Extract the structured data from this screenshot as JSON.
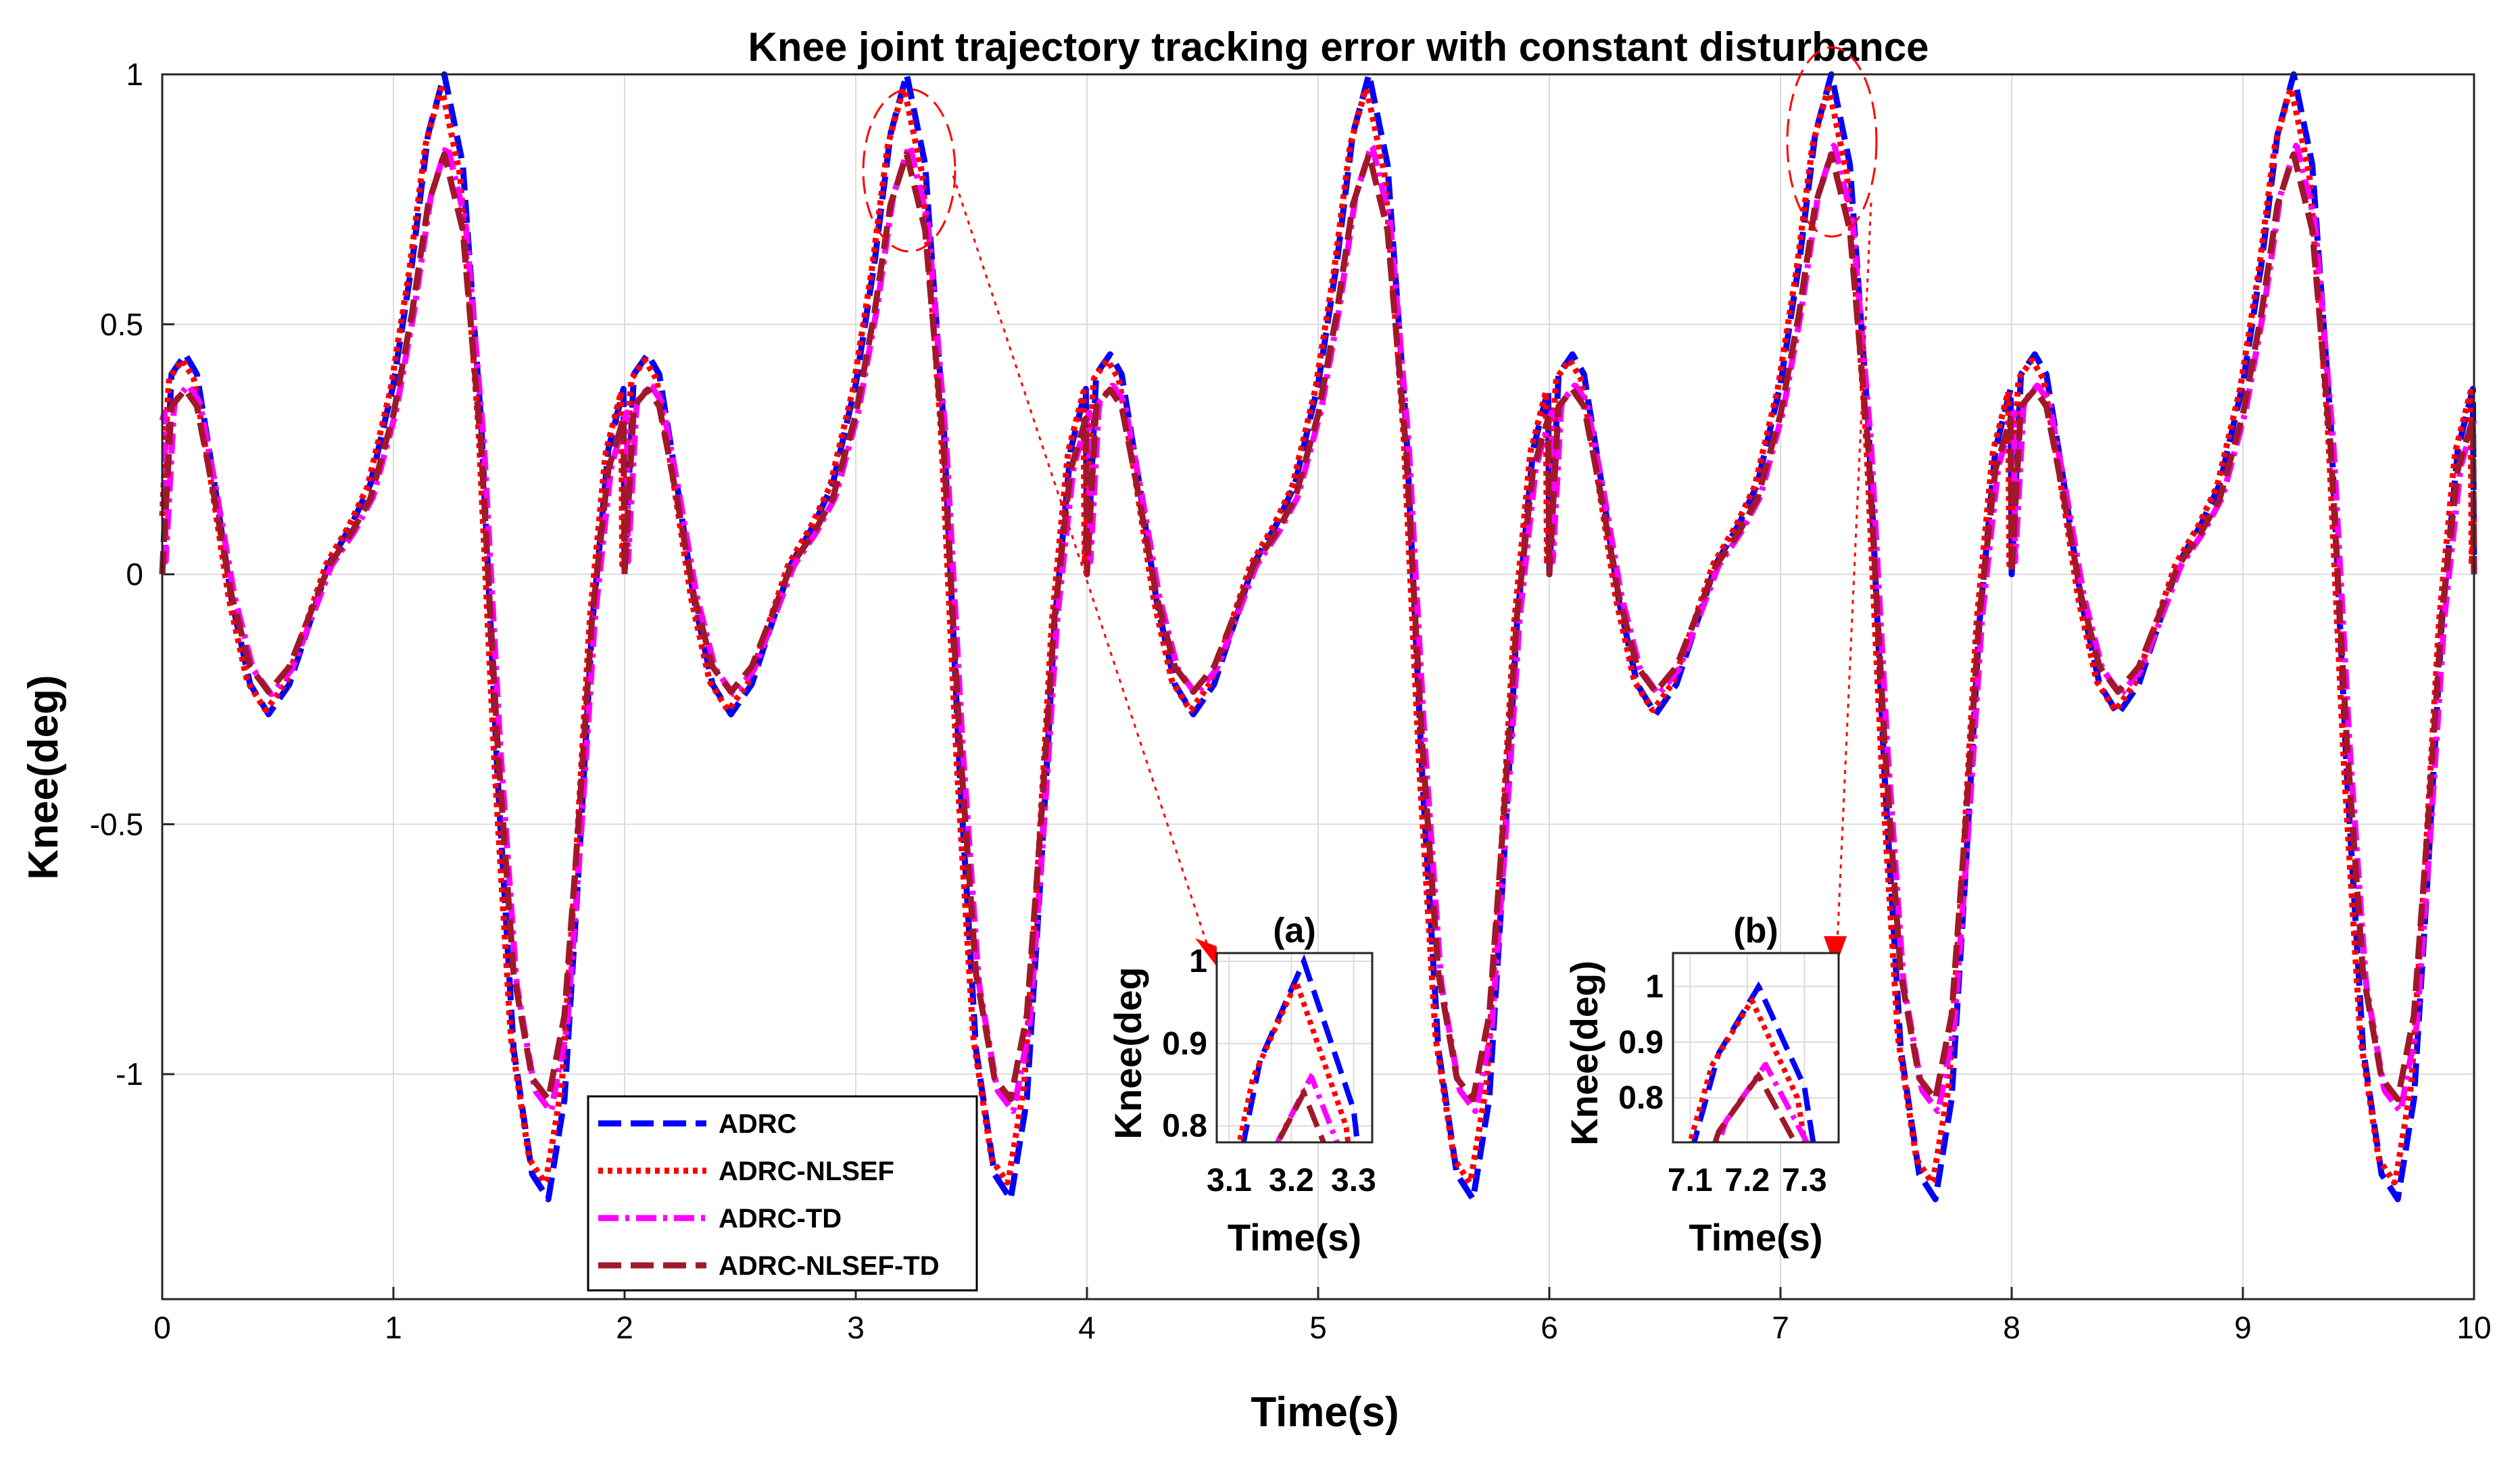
{
  "chart_data": {
    "type": "line",
    "title": "Knee joint trajectory tracking error with constant disturbance",
    "xlabel": "Time(s)",
    "ylabel": "Knee(deg)",
    "xlim": [
      0,
      10
    ],
    "ylim": [
      -1.45,
      1.0
    ],
    "xticks": [
      0,
      1,
      2,
      3,
      4,
      5,
      6,
      7,
      8,
      9,
      10
    ],
    "xtick_labels": [
      "0",
      "1",
      "2",
      "3",
      "4",
      "5",
      "6",
      "7",
      "8",
      "9",
      "10"
    ],
    "yticks": [
      1,
      0.5,
      0,
      -0.5,
      -1
    ],
    "ytick_labels": [
      "1",
      "0.5",
      "0",
      "-0.5",
      "-1"
    ],
    "grid": true,
    "legend_position": "bottom-left",
    "period": 2,
    "waveform_points": [
      [
        0.0,
        0.0
      ],
      [
        0.04,
        0.4
      ],
      [
        0.1,
        0.44
      ],
      [
        0.15,
        0.4
      ],
      [
        0.22,
        0.2
      ],
      [
        0.3,
        -0.05
      ],
      [
        0.38,
        -0.22
      ],
      [
        0.46,
        -0.28
      ],
      [
        0.55,
        -0.22
      ],
      [
        0.65,
        -0.08
      ],
      [
        0.72,
        0.02
      ],
      [
        0.82,
        0.1
      ],
      [
        0.9,
        0.18
      ],
      [
        1.0,
        0.38
      ],
      [
        1.08,
        0.62
      ],
      [
        1.15,
        0.88
      ],
      [
        1.22,
        1.0
      ],
      [
        1.3,
        0.82
      ],
      [
        1.38,
        0.3
      ],
      [
        1.45,
        -0.4
      ],
      [
        1.52,
        -0.95
      ],
      [
        1.6,
        -1.2
      ],
      [
        1.67,
        -1.25
      ],
      [
        1.74,
        -1.05
      ],
      [
        1.8,
        -0.6
      ],
      [
        1.86,
        -0.1
      ],
      [
        1.93,
        0.25
      ],
      [
        2.0,
        0.38
      ]
    ],
    "series": [
      {
        "name": "ADRC",
        "color": "#0000ff",
        "scale": 1.0,
        "phase": 0.0,
        "dash": "dashed"
      },
      {
        "name": "ADRC-NLSEF",
        "color": "#ff0000",
        "scale": 0.975,
        "phase": -0.012,
        "dash": "dotted"
      },
      {
        "name": "ADRC-TD",
        "color": "#ff00ff",
        "scale": 0.86,
        "phase": 0.012,
        "dash": "dashdot"
      },
      {
        "name": "ADRC-NLSEF-TD",
        "color": "#a0182a",
        "scale": 0.84,
        "phase": 0.0,
        "dash": "dashed"
      }
    ],
    "insets": [
      {
        "title": "(a)",
        "xlabel": "Time(s)",
        "ylabel": "Knee(deg",
        "xlim": [
          3.08,
          3.33
        ],
        "ylim": [
          0.78,
          1.01
        ],
        "xticks": [
          3.1,
          3.2,
          3.3
        ],
        "xtick_labels": [
          "3.1",
          "3.2",
          "3.3"
        ],
        "yticks": [
          1,
          0.9,
          0.8
        ],
        "ytick_labels": [
          "1",
          "0.9",
          "0.8"
        ]
      },
      {
        "title": "(b)",
        "xlabel": "Time(s)",
        "ylabel": "Knee(deg)",
        "xlim": [
          7.07,
          7.36
        ],
        "ylim": [
          0.72,
          1.06
        ],
        "xticks": [
          7.1,
          7.2,
          7.3
        ],
        "xtick_labels": [
          "7.1",
          "7.2",
          "7.3"
        ],
        "yticks": [
          1,
          0.9,
          0.8
        ],
        "ytick_labels": [
          "1",
          "0.9",
          "0.8"
        ]
      }
    ]
  }
}
